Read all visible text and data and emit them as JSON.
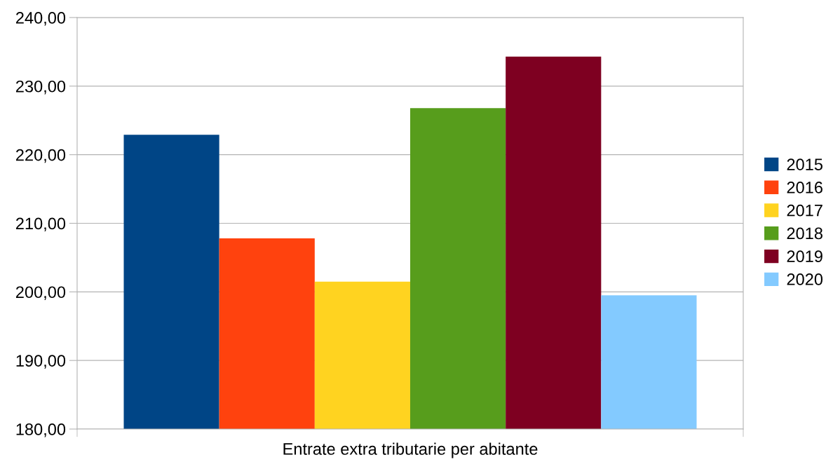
{
  "chart_data": {
    "type": "bar",
    "categories": [
      "Entrate extra tributarie per abitante"
    ],
    "series": [
      {
        "name": "2015",
        "color": "#004586",
        "values": [
          222.9
        ]
      },
      {
        "name": "2016",
        "color": "#ff420e",
        "values": [
          207.8
        ]
      },
      {
        "name": "2017",
        "color": "#ffd320",
        "values": [
          201.5
        ]
      },
      {
        "name": "2018",
        "color": "#579d1c",
        "values": [
          226.8
        ]
      },
      {
        "name": "2019",
        "color": "#7e0021",
        "values": [
          234.3
        ]
      },
      {
        "name": "2020",
        "color": "#83caff",
        "values": [
          199.5
        ]
      }
    ],
    "ylim": [
      180,
      240
    ],
    "yticks": [
      {
        "value": 180,
        "label": "180,00"
      },
      {
        "value": 190,
        "label": "190,00"
      },
      {
        "value": 200,
        "label": "200,00"
      },
      {
        "value": 210,
        "label": "210,00"
      },
      {
        "value": 220,
        "label": "220,00"
      },
      {
        "value": 230,
        "label": "230,00"
      },
      {
        "value": 240,
        "label": "240,00"
      }
    ],
    "grid": "y",
    "legend": "right"
  }
}
